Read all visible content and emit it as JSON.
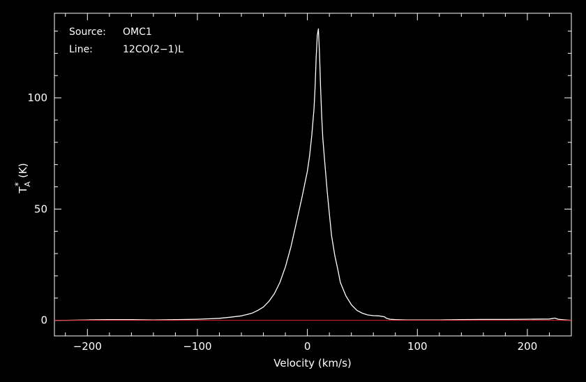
{
  "chart_data": {
    "type": "line",
    "xlabel": "Velocity (km/s)",
    "ylabel": "T",
    "ylabel_sub": "A",
    "ylabel_sup": "*",
    "ylabel_unit": "(K)",
    "xlim": [
      -230,
      240
    ],
    "ylim": [
      -7,
      138
    ],
    "x_ticks_major": [
      -200,
      -100,
      0,
      100,
      200
    ],
    "x_tick_labels": [
      "−200",
      "−100",
      "0",
      "100",
      "200"
    ],
    "x_ticks_minor_step": 20,
    "y_ticks_major": [
      0,
      50,
      100
    ],
    "y_tick_labels": [
      "0",
      "50",
      "100"
    ],
    "y_ticks_minor_step": 10,
    "grid": false,
    "colors": {
      "background": "#000000",
      "axes": "#ffffff",
      "spectrum": "#ffffff",
      "baseline": "#cc2222"
    },
    "annotations": {
      "source_label": "Source:",
      "source_value": "OMC1",
      "line_label": "Line:",
      "line_value": "12CO(2−1)L"
    },
    "baseline": {
      "y": 0
    },
    "series": [
      {
        "x": [
          -230,
          -220,
          -200,
          -180,
          -160,
          -140,
          -120,
          -100,
          -90,
          -80,
          -70,
          -60,
          -55,
          -50,
          -45,
          -40,
          -35,
          -30,
          -25,
          -20,
          -15,
          -10,
          -5,
          0,
          2,
          4,
          6,
          7,
          8,
          9,
          10,
          11,
          12,
          13,
          14,
          16,
          18,
          20,
          22,
          25,
          28,
          30,
          35,
          40,
          45,
          50,
          55,
          60,
          65,
          70,
          72,
          75,
          80,
          90,
          100,
          120,
          140,
          160,
          180,
          200,
          220,
          225,
          228,
          235,
          240
        ],
        "y": [
          0,
          0,
          0.2,
          0.3,
          0.3,
          0.2,
          0.3,
          0.5,
          0.7,
          0.9,
          1.4,
          2.0,
          2.6,
          3.3,
          4.5,
          6.0,
          8.5,
          12,
          17,
          24,
          33,
          44,
          55,
          67,
          74,
          83,
          95,
          105,
          118,
          128,
          131,
          120,
          105,
          92,
          82,
          70,
          58,
          48,
          38,
          29,
          22,
          17,
          11,
          7,
          4.5,
          3.2,
          2.4,
          2.1,
          2.0,
          1.6,
          0.9,
          0.5,
          0.3,
          0.2,
          0.2,
          0.2,
          0.3,
          0.4,
          0.4,
          0.5,
          0.6,
          1.0,
          0.5,
          0.2,
          0
        ]
      }
    ]
  }
}
